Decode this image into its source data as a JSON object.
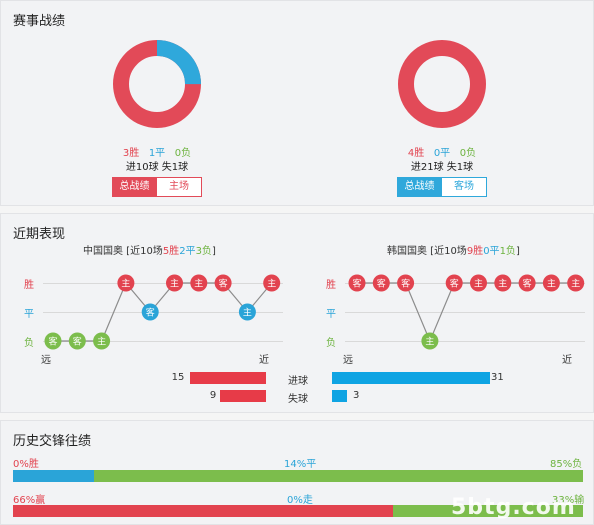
{
  "season": {
    "title": "赛事战绩",
    "left": {
      "win": "3胜",
      "draw": "1平",
      "lose": "0负",
      "goals": "进10球 失1球",
      "btn_active": "总战绩",
      "btn_other": "主场",
      "win_frac": 0.75
    },
    "right": {
      "win": "4胜",
      "draw": "0平",
      "lose": "0负",
      "goals": "进21球 失1球",
      "btn_active": "总战绩",
      "btn_other": "客场",
      "win_frac": 1.0
    }
  },
  "recent": {
    "title": "近期表现",
    "rows": {
      "win": "胜",
      "draw": "平",
      "lose": "负"
    },
    "far": "远",
    "near": "近",
    "left": {
      "team": "中国国奥",
      "summary_pre": " [近10场",
      "summary_win": "5胜",
      "summary_draw": "2平",
      "summary_lose": "3负",
      "summary_post": "]",
      "matches": [
        {
          "r": "lose",
          "v": "客"
        },
        {
          "r": "lose",
          "v": "客"
        },
        {
          "r": "lose",
          "v": "主"
        },
        {
          "r": "win",
          "v": "主"
        },
        {
          "r": "draw",
          "v": "客"
        },
        {
          "r": "win",
          "v": "主"
        },
        {
          "r": "win",
          "v": "主"
        },
        {
          "r": "win",
          "v": "客"
        },
        {
          "r": "draw",
          "v": "主"
        },
        {
          "r": "win",
          "v": "主"
        }
      ]
    },
    "right": {
      "team": "韩国国奥",
      "summary_pre": " [近10场",
      "summary_win": "9胜",
      "summary_draw": "0平",
      "summary_lose": "1负",
      "summary_post": "]",
      "matches": [
        {
          "r": "win",
          "v": "客"
        },
        {
          "r": "win",
          "v": "客"
        },
        {
          "r": "win",
          "v": "客"
        },
        {
          "r": "lose",
          "v": "主"
        },
        {
          "r": "win",
          "v": "客"
        },
        {
          "r": "win",
          "v": "主"
        },
        {
          "r": "win",
          "v": "主"
        },
        {
          "r": "win",
          "v": "客"
        },
        {
          "r": "win",
          "v": "主"
        },
        {
          "r": "win",
          "v": "主"
        }
      ]
    },
    "goals": {
      "scored_label": "进球",
      "conceded_label": "失球",
      "left_scored": 15,
      "left_conceded": 9,
      "right_scored": 31,
      "right_conceded": 3
    }
  },
  "history": {
    "title": "历史交锋往绩",
    "bar1": {
      "left": "0%胜",
      "mid": "14%平",
      "right": "85%负",
      "left_frac": 0.0,
      "mid_frac": 0.14,
      "right_frac": 0.85
    },
    "bar2": {
      "left": "66%赢",
      "mid": "0%走",
      "right": "33%输",
      "left_frac": 0.66,
      "mid_frac": 0.0,
      "right_frac": 0.33
    }
  },
  "watermark": "5btg.com",
  "colors": {
    "red": "#e2434f",
    "blue": "#2aa4d8",
    "green": "#7cbd4c",
    "bar_red": "#e73b48",
    "bar_blue": "#0fa4e3"
  }
}
